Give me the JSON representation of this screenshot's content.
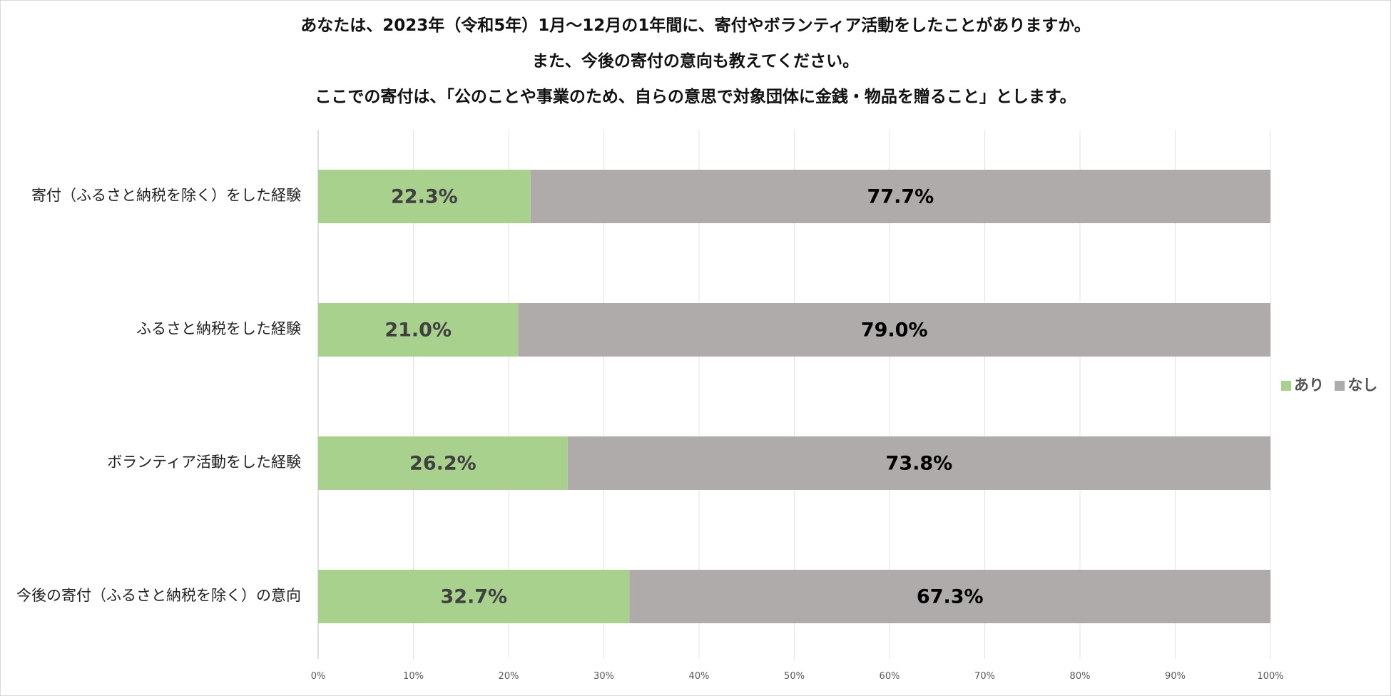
{
  "chart_data": {
    "type": "bar",
    "orientation": "horizontal",
    "stacked": "100%",
    "title_lines": [
      "あなたは、2023年（令和5年）1月～12月の1年間に、寄付やボランティア活動をしたことがありますか。",
      "また、今後の寄付の意向も教えてください。",
      "ここでの寄付は、「公のことや事業のため、自らの意思で対象団体に金銭・物品を贈ること」とします。"
    ],
    "categories": [
      "寄付（ふるさと納税を除く）をした経験",
      "ふるさと納税をした経験",
      "ボランティア活動をした経験",
      "今後の寄付（ふるさと納税を除く）の意向"
    ],
    "series": [
      {
        "name": "あり",
        "color": "#a9d18e",
        "label_color": "#404040",
        "values": [
          22.3,
          21.0,
          26.2,
          32.7
        ],
        "labels": [
          "22.3%",
          "21.0%",
          "26.2%",
          "32.7%"
        ]
      },
      {
        "name": "なし",
        "color": "#afabab",
        "label_color": "#000000",
        "values": [
          77.7,
          79.0,
          73.8,
          67.3
        ],
        "labels": [
          "77.7%",
          "79.0%",
          "73.8%",
          "67.3%"
        ]
      }
    ],
    "xlim": [
      0,
      100
    ],
    "x_ticks": [
      "0%",
      "10%",
      "20%",
      "30%",
      "40%",
      "50%",
      "60%",
      "70%",
      "80%",
      "90%",
      "100%"
    ],
    "grid": true,
    "legend_position": "right"
  }
}
